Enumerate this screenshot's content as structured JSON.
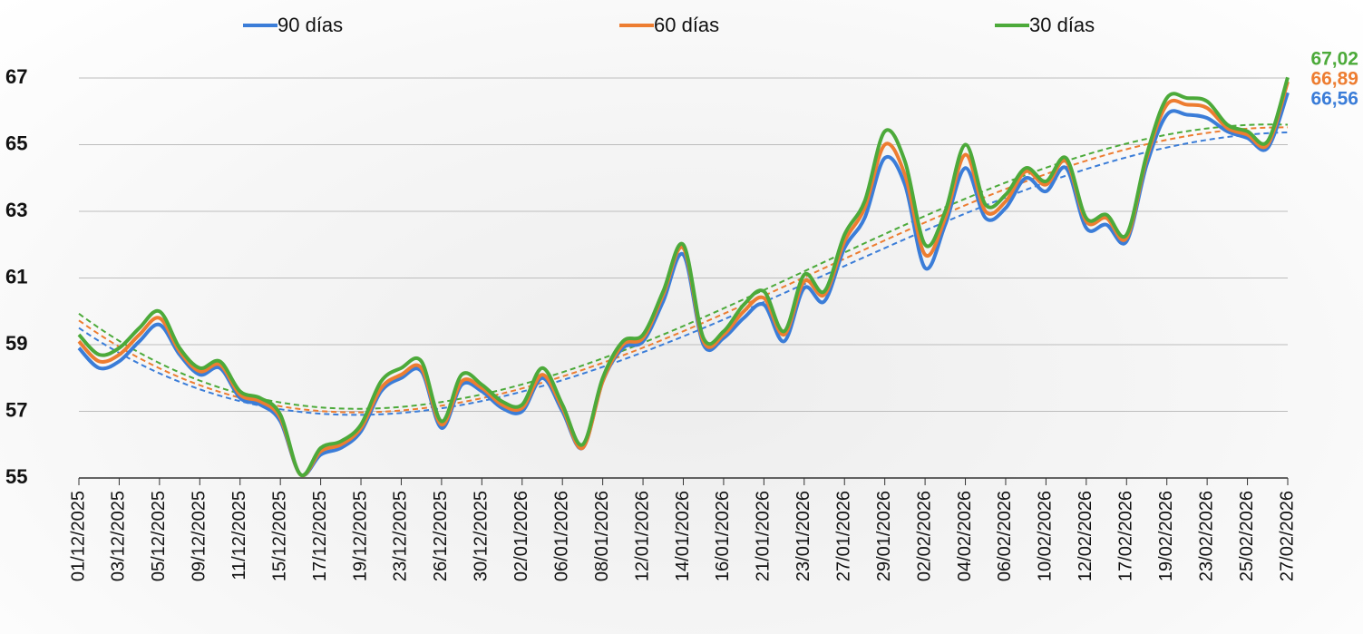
{
  "chart_data": {
    "type": "line",
    "categories": [
      "01/12/2025",
      null,
      "03/12/2025",
      null,
      "05/12/2025",
      null,
      "09/12/2025",
      null,
      "11/12/2025",
      null,
      "15/12/2025",
      null,
      "17/12/2025",
      null,
      "19/12/2025",
      null,
      "23/12/2025",
      null,
      "26/12/2025",
      null,
      "30/12/2025",
      null,
      "02/01/2026",
      null,
      "06/01/2026",
      null,
      "08/01/2026",
      null,
      "12/01/2026",
      null,
      "14/01/2026",
      null,
      "16/01/2026",
      null,
      "21/01/2026",
      null,
      "23/01/2026",
      null,
      "27/01/2026",
      null,
      "29/01/2026",
      null,
      "02/02/2026",
      null,
      "04/02/2026",
      null,
      "06/02/2026",
      null,
      "10/02/2026",
      null,
      "12/02/2026",
      null,
      "17/02/2026",
      null,
      "19/02/2026",
      null,
      "23/02/2026",
      null,
      "25/02/2026",
      null,
      "27/02/2026"
    ],
    "series": [
      {
        "name": "90 días",
        "color": "#3b7dd8",
        "values": [
          58.9,
          58.3,
          58.5,
          59.1,
          59.6,
          58.7,
          58.1,
          58.3,
          57.4,
          57.2,
          56.7,
          55.1,
          55.7,
          55.9,
          56.4,
          57.6,
          58.0,
          58.2,
          56.5,
          57.8,
          57.6,
          57.1,
          57.0,
          58.0,
          57.0,
          55.9,
          57.9,
          58.9,
          59.1,
          60.3,
          61.7,
          59.0,
          59.2,
          59.8,
          60.2,
          59.1,
          60.7,
          60.3,
          61.9,
          62.8,
          64.6,
          63.8,
          61.3,
          62.6,
          64.3,
          62.8,
          63.1,
          64.0,
          63.6,
          64.3,
          62.5,
          62.6,
          62.1,
          64.4,
          65.9,
          65.9,
          65.8,
          65.4,
          65.2,
          64.9,
          66.56
        ],
        "value_labels": [
          null,
          null,
          null,
          null,
          null,
          null,
          null,
          null,
          null,
          null,
          null,
          null,
          null,
          null,
          null,
          null,
          null,
          null,
          null,
          null,
          null,
          null,
          null,
          null,
          null,
          null,
          null,
          null,
          null,
          null,
          null,
          null,
          null,
          null,
          null,
          null,
          null,
          null,
          null,
          null,
          null,
          null,
          null,
          null,
          null,
          null,
          null,
          null,
          null,
          null,
          null,
          null,
          null,
          null,
          null,
          null,
          null,
          null,
          null,
          null,
          "66,56"
        ]
      },
      {
        "name": "60 días",
        "color": "#ed7d31",
        "values": [
          59.1,
          58.5,
          58.7,
          59.3,
          59.8,
          58.8,
          58.2,
          58.4,
          57.5,
          57.3,
          56.8,
          55.1,
          55.8,
          56.0,
          56.5,
          57.7,
          58.1,
          58.3,
          56.6,
          57.9,
          57.7,
          57.2,
          57.1,
          58.1,
          57.1,
          55.9,
          57.9,
          59.0,
          59.2,
          60.5,
          61.9,
          59.1,
          59.3,
          60.0,
          60.4,
          59.3,
          60.9,
          60.5,
          62.1,
          63.1,
          65.0,
          64.1,
          61.7,
          62.8,
          64.7,
          63.0,
          63.3,
          64.2,
          63.8,
          64.5,
          62.7,
          62.8,
          62.2,
          64.6,
          66.2,
          66.2,
          66.1,
          65.5,
          65.3,
          65.0,
          66.89
        ],
        "value_labels": [
          null,
          null,
          null,
          null,
          null,
          null,
          null,
          null,
          null,
          null,
          null,
          null,
          null,
          null,
          null,
          null,
          null,
          null,
          null,
          null,
          null,
          null,
          null,
          null,
          null,
          null,
          null,
          null,
          null,
          null,
          null,
          null,
          null,
          null,
          null,
          null,
          null,
          null,
          null,
          null,
          null,
          null,
          null,
          null,
          null,
          null,
          null,
          null,
          null,
          null,
          null,
          null,
          null,
          null,
          null,
          null,
          null,
          null,
          null,
          null,
          "66,89"
        ]
      },
      {
        "name": "30 días",
        "color": "#4caa3a",
        "values": [
          59.3,
          58.7,
          58.9,
          59.5,
          60.0,
          58.9,
          58.3,
          58.5,
          57.6,
          57.4,
          56.9,
          55.1,
          55.9,
          56.1,
          56.6,
          57.9,
          58.3,
          58.5,
          56.7,
          58.1,
          57.8,
          57.3,
          57.2,
          58.3,
          57.2,
          56.0,
          58.0,
          59.1,
          59.3,
          60.6,
          62.0,
          59.2,
          59.4,
          60.2,
          60.6,
          59.4,
          61.1,
          60.6,
          62.3,
          63.3,
          65.4,
          64.5,
          62.0,
          63.0,
          65.0,
          63.2,
          63.5,
          64.3,
          63.9,
          64.6,
          62.8,
          62.9,
          62.3,
          64.7,
          66.4,
          66.4,
          66.3,
          65.6,
          65.4,
          65.1,
          67.02
        ],
        "value_labels": [
          null,
          null,
          null,
          null,
          null,
          null,
          null,
          null,
          null,
          null,
          null,
          null,
          null,
          null,
          null,
          null,
          null,
          null,
          null,
          null,
          null,
          null,
          null,
          null,
          null,
          null,
          null,
          null,
          null,
          null,
          null,
          null,
          null,
          null,
          null,
          null,
          null,
          null,
          null,
          null,
          null,
          null,
          null,
          null,
          null,
          null,
          null,
          null,
          null,
          null,
          null,
          null,
          null,
          null,
          null,
          null,
          null,
          null,
          null,
          null,
          "67,02"
        ]
      }
    ],
    "ylim": [
      55,
      67.3
    ],
    "yticks": [
      55,
      57,
      59,
      61,
      63,
      65,
      67
    ],
    "grid": true,
    "legend": "top",
    "trendline": {
      "type": "polynomial",
      "order": 3
    }
  }
}
